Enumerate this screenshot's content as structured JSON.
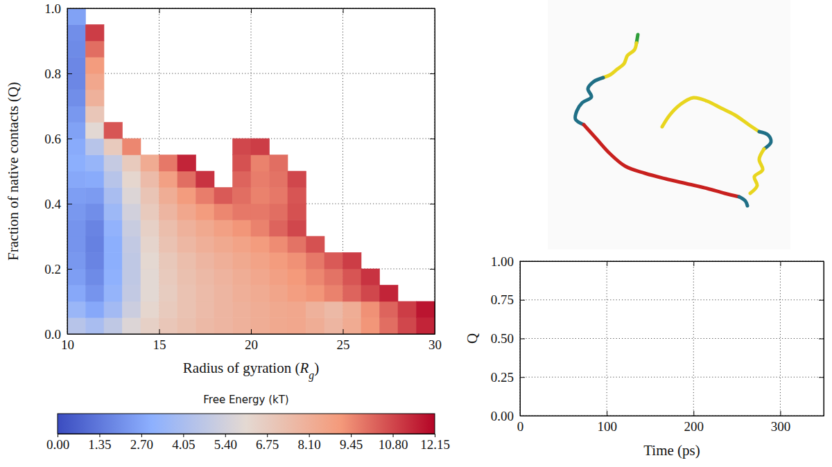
{
  "chart_data": [
    {
      "type": "heatmap",
      "xlabel": "Radius of gyration (Rg)",
      "ylabel": "Fraction of native contacts (Q)",
      "xlim": [
        10,
        30
      ],
      "ylim": [
        0,
        1
      ],
      "xticks": [
        10,
        15,
        20,
        25,
        30
      ],
      "yticks": [
        {
          "value": 0,
          "label": "0.0"
        },
        0.2,
        0.4,
        0.6,
        0.8,
        {
          "value": 1,
          "label": "1.0"
        }
      ],
      "grid": true,
      "xbins": [
        10,
        11,
        12,
        13,
        14,
        15,
        16,
        17,
        18,
        19,
        20,
        21,
        22,
        23,
        24,
        25,
        26,
        27,
        28,
        29,
        30
      ],
      "ybins": [
        0,
        0.05,
        0.1,
        0.15,
        0.2,
        0.25,
        0.3,
        0.35,
        0.4,
        0.45,
        0.5,
        0.55,
        0.6,
        0.65,
        0.7,
        0.75,
        0.8,
        0.85,
        0.9,
        0.95,
        1
      ],
      "z": [
        [
          4.5,
          4.0,
          4.8,
          5.8,
          6.5,
          7.0,
          7.3,
          7.6,
          7.8,
          8.0,
          8.2,
          8.4,
          8.5,
          8.2,
          7.8,
          8.3,
          9.2,
          10.0,
          10.8,
          11.5
        ],
        [
          3.5,
          2.8,
          3.8,
          5.2,
          6.2,
          6.8,
          7.2,
          7.5,
          7.8,
          8.0,
          8.2,
          8.4,
          8.5,
          8.0,
          7.6,
          8.2,
          9.3,
          10.2,
          11.0,
          11.8
        ],
        [
          2.8,
          2.2,
          3.3,
          4.9,
          6.0,
          6.7,
          7.2,
          7.5,
          7.8,
          8.1,
          8.3,
          8.6,
          8.9,
          9.2,
          9.6,
          10.2,
          10.8,
          11.5,
          null,
          null
        ],
        [
          2.5,
          1.9,
          3.1,
          4.8,
          6.0,
          6.8,
          7.3,
          7.6,
          7.9,
          8.2,
          8.5,
          8.8,
          9.1,
          9.5,
          9.9,
          10.5,
          11.2,
          null,
          null,
          null
        ],
        [
          2.3,
          1.7,
          3.0,
          4.8,
          6.1,
          6.9,
          7.4,
          7.8,
          8.1,
          8.4,
          8.7,
          9.0,
          9.3,
          9.8,
          10.4,
          11.0,
          null,
          null,
          null,
          null
        ],
        [
          2.2,
          1.6,
          3.0,
          4.9,
          6.3,
          7.2,
          7.7,
          8.1,
          8.4,
          8.7,
          9.0,
          9.4,
          9.9,
          10.6,
          null,
          null,
          null,
          null,
          null,
          null
        ],
        [
          2.2,
          1.7,
          3.2,
          5.1,
          6.5,
          7.4,
          8.0,
          8.4,
          8.8,
          9.2,
          9.6,
          10.2,
          10.8,
          null,
          null,
          null,
          null,
          null,
          null,
          null
        ],
        [
          2.3,
          2.0,
          3.6,
          5.4,
          6.8,
          7.8,
          8.5,
          9.0,
          9.5,
          9.8,
          9.8,
          10.0,
          10.6,
          null,
          null,
          null,
          null,
          null,
          null,
          null
        ],
        [
          2.5,
          2.4,
          4.0,
          5.8,
          7.1,
          8.2,
          9.0,
          9.7,
          10.4,
          10.0,
          9.6,
          9.8,
          10.5,
          null,
          null,
          null,
          null,
          null,
          null,
          null
        ],
        [
          2.8,
          2.9,
          4.5,
          6.2,
          7.5,
          8.8,
          10.0,
          11.2,
          null,
          10.2,
          9.7,
          9.9,
          10.8,
          null,
          null,
          null,
          null,
          null,
          null,
          null
        ],
        [
          3.0,
          3.4,
          5.0,
          6.8,
          8.3,
          9.8,
          11.5,
          null,
          null,
          10.6,
          9.6,
          10.0,
          null,
          null,
          null,
          null,
          null,
          null,
          null,
          null
        ],
        [
          2.9,
          4.5,
          6.8,
          9.5,
          null,
          null,
          null,
          null,
          null,
          10.8,
          11.0,
          null,
          null,
          null,
          null,
          null,
          null,
          null,
          null,
          null
        ],
        [
          2.6,
          6.0,
          10.5,
          null,
          null,
          null,
          null,
          null,
          null,
          null,
          null,
          null,
          null,
          null,
          null,
          null,
          null,
          null,
          null,
          null
        ],
        [
          2.3,
          7.0,
          null,
          null,
          null,
          null,
          null,
          null,
          null,
          null,
          null,
          null,
          null,
          null,
          null,
          null,
          null,
          null,
          null,
          null
        ],
        [
          2.0,
          8.0,
          null,
          null,
          null,
          null,
          null,
          null,
          null,
          null,
          null,
          null,
          null,
          null,
          null,
          null,
          null,
          null,
          null,
          null
        ],
        [
          1.8,
          8.5,
          null,
          null,
          null,
          null,
          null,
          null,
          null,
          null,
          null,
          null,
          null,
          null,
          null,
          null,
          null,
          null,
          null,
          null
        ],
        [
          1.8,
          9.0,
          null,
          null,
          null,
          null,
          null,
          null,
          null,
          null,
          null,
          null,
          null,
          null,
          null,
          null,
          null,
          null,
          null,
          null
        ],
        [
          1.9,
          10.0,
          null,
          null,
          null,
          null,
          null,
          null,
          null,
          null,
          null,
          null,
          null,
          null,
          null,
          null,
          null,
          null,
          null,
          null
        ],
        [
          2.0,
          11.0,
          null,
          null,
          null,
          null,
          null,
          null,
          null,
          null,
          null,
          null,
          null,
          null,
          null,
          null,
          null,
          null,
          null,
          null
        ],
        [
          2.6,
          null,
          null,
          null,
          null,
          null,
          null,
          null,
          null,
          null,
          null,
          null,
          null,
          null,
          null,
          null,
          null,
          null,
          null,
          null
        ]
      ],
      "zlabel": "Free Energy (kT)",
      "zlim": [
        0,
        12.15
      ],
      "zticks": [
        {
          "value": 0,
          "label": "0.00"
        },
        1.35,
        {
          "value": 2.7,
          "label": "2.70"
        },
        4.05,
        {
          "value": 5.4,
          "label": "5.40"
        },
        6.75,
        {
          "value": 8.1,
          "label": "8.10"
        },
        9.45,
        {
          "value": 10.8,
          "label": "10.80"
        },
        12.15
      ]
    },
    {
      "type": "line",
      "xlabel": "Time (ps)",
      "ylabel": "Q",
      "xlim": [
        0,
        350
      ],
      "ylim": [
        0,
        1
      ],
      "xticks": [
        0,
        100,
        200,
        300
      ],
      "yticks": [
        {
          "value": 0,
          "label": "0.00"
        },
        0.25,
        {
          "value": 0.5,
          "label": "0.50"
        },
        0.75,
        {
          "value": 1,
          "label": "1.00"
        }
      ],
      "grid": true,
      "x": [],
      "values": []
    }
  ]
}
